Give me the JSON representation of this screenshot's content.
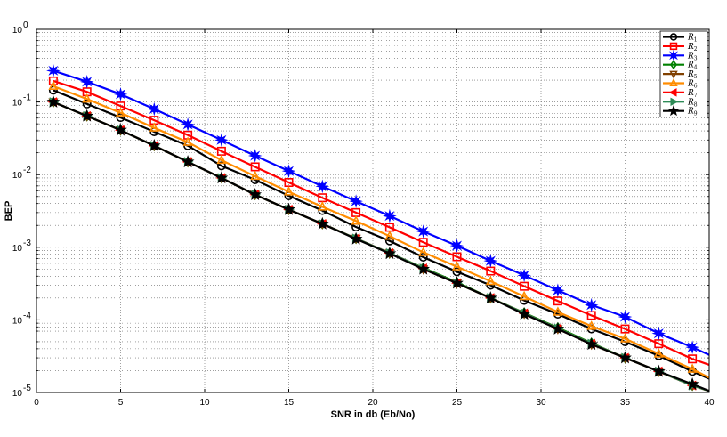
{
  "chart_data": {
    "type": "line",
    "xlabel": "SNR in db (Eb/No)",
    "ylabel": "BEP",
    "xlim": [
      0,
      40
    ],
    "ylim": [
      1e-05,
      1
    ],
    "yscale": "log",
    "grid": true,
    "legend_position": "top-right",
    "x_ticks": [
      0,
      5,
      10,
      15,
      20,
      25,
      30,
      35,
      40
    ],
    "x_tick_labels": [
      "0",
      "5",
      "10",
      "15",
      "20",
      "25",
      "30",
      "35",
      "40"
    ],
    "y_ticks": [
      1e-05,
      0.0001,
      0.001,
      0.01,
      0.1,
      1
    ],
    "y_tick_labels": [
      {
        "base": "10",
        "exp": "-5"
      },
      {
        "base": "10",
        "exp": "-4"
      },
      {
        "base": "10",
        "exp": "-3"
      },
      {
        "base": "10",
        "exp": "-2"
      },
      {
        "base": "10",
        "exp": "-1"
      },
      {
        "base": "10",
        "exp": "0"
      }
    ],
    "x": [
      1,
      3,
      5,
      7,
      9,
      11,
      13,
      15,
      17,
      19,
      21,
      23,
      25,
      27,
      29,
      31,
      33,
      35,
      37,
      39,
      40
    ],
    "series": [
      {
        "name": "R1",
        "label_base": "R",
        "label_sub": "1",
        "color": "#000000",
        "marker": "circle",
        "values": [
          0.145,
          0.094,
          0.061,
          0.039,
          0.025,
          0.0132,
          0.0085,
          0.0051,
          0.0032,
          0.0019,
          0.00122,
          0.00073,
          0.00046,
          0.0003,
          0.000185,
          0.00012,
          7.5e-05,
          5e-05,
          3.2e-05,
          1.95e-05,
          1.55e-05
        ]
      },
      {
        "name": "R2",
        "label_base": "R",
        "label_sub": "2",
        "color": "#ff0000",
        "marker": "square",
        "values": [
          0.195,
          0.138,
          0.088,
          0.056,
          0.035,
          0.021,
          0.0128,
          0.0078,
          0.0048,
          0.003,
          0.00188,
          0.00117,
          0.00074,
          0.00047,
          0.00029,
          0.000182,
          0.000115,
          7.5e-05,
          4.7e-05,
          2.9e-05,
          2.4e-05
        ]
      },
      {
        "name": "R3",
        "label_base": "R",
        "label_sub": "3",
        "color": "#0000ff",
        "marker": "star",
        "values": [
          0.27,
          0.19,
          0.128,
          0.08,
          0.049,
          0.03,
          0.0182,
          0.0112,
          0.0069,
          0.0043,
          0.0027,
          0.00165,
          0.00105,
          0.00065,
          0.00041,
          0.000255,
          0.00016,
          0.00011,
          6.5e-05,
          4.2e-05,
          3.3e-05
        ]
      },
      {
        "name": "R4",
        "label_base": "R",
        "label_sub": "4",
        "color": "#008000",
        "marker": "diamond",
        "values": [
          0.1,
          0.064,
          0.041,
          0.025,
          0.015,
          0.009,
          0.0053,
          0.0033,
          0.0021,
          0.00132,
          0.00083,
          0.00052,
          0.00033,
          0.0002,
          0.000125,
          7.8e-05,
          4.8e-05,
          3e-05,
          1.95e-05,
          1.25e-05,
          1.05e-05
        ]
      },
      {
        "name": "R5",
        "label_base": "R",
        "label_sub": "5",
        "color": "#804000",
        "marker": "triangle-down",
        "values": [
          0.1,
          0.064,
          0.041,
          0.025,
          0.015,
          0.009,
          0.0053,
          0.0033,
          0.0021,
          0.00132,
          0.00083,
          0.0005,
          0.00032,
          0.0002,
          0.000122,
          7.5e-05,
          4.6e-05,
          3e-05,
          1.95e-05,
          1.25e-05,
          1.05e-05
        ]
      },
      {
        "name": "R6",
        "label_base": "R",
        "label_sub": "6",
        "color": "#ff8c00",
        "marker": "triangle-up",
        "values": [
          0.165,
          0.11,
          0.071,
          0.044,
          0.028,
          0.0158,
          0.0095,
          0.0058,
          0.0036,
          0.0023,
          0.00142,
          0.00085,
          0.00054,
          0.00034,
          0.00021,
          0.000128,
          8.2e-05,
          5.5e-05,
          3.4e-05,
          2.1e-05,
          1.6e-05
        ]
      },
      {
        "name": "R7",
        "label_base": "R",
        "label_sub": "7",
        "color": "#ff0000",
        "marker": "triangle-left",
        "values": [
          0.1,
          0.064,
          0.041,
          0.025,
          0.015,
          0.009,
          0.0053,
          0.0033,
          0.0021,
          0.00132,
          0.00083,
          0.00051,
          0.00032,
          0.0002,
          0.000123,
          7.6e-05,
          4.7e-05,
          3e-05,
          1.95e-05,
          1.25e-05,
          1.05e-05
        ]
      },
      {
        "name": "R8",
        "label_base": "R",
        "label_sub": "8",
        "color": "#2e8b57",
        "marker": "triangle-right",
        "values": [
          0.1,
          0.064,
          0.041,
          0.025,
          0.015,
          0.009,
          0.0053,
          0.0033,
          0.0021,
          0.00132,
          0.00083,
          0.00051,
          0.00032,
          0.0002,
          0.000123,
          7.6e-05,
          4.7e-05,
          3e-05,
          1.95e-05,
          1.25e-05,
          1.05e-05
        ]
      },
      {
        "name": "R9",
        "label_base": "R",
        "label_sub": "9",
        "color": "#000000",
        "marker": "pentagram",
        "values": [
          0.1,
          0.064,
          0.041,
          0.025,
          0.015,
          0.009,
          0.0053,
          0.0033,
          0.0021,
          0.0013,
          0.00082,
          0.0005,
          0.00032,
          0.0002,
          0.00012,
          7.5e-05,
          4.6e-05,
          3e-05,
          1.95e-05,
          1.3e-05,
          1.05e-05
        ]
      }
    ]
  }
}
